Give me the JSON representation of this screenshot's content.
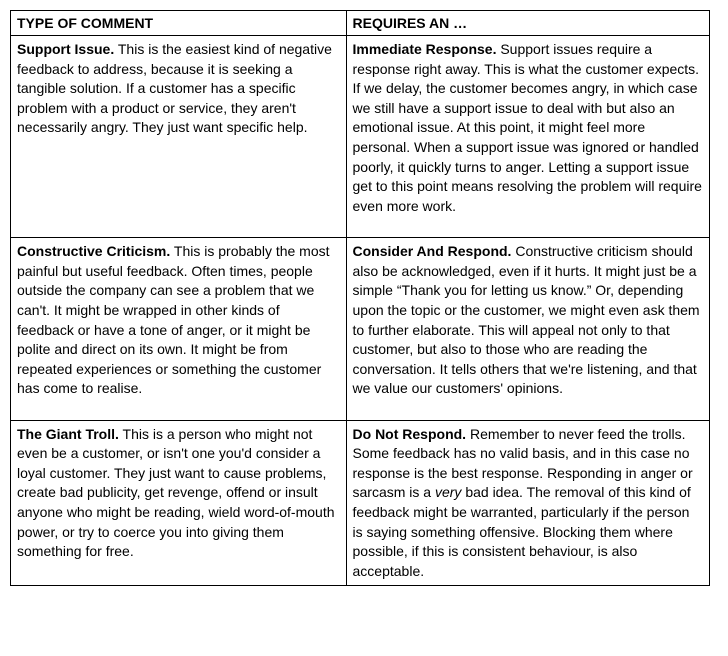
{
  "table": {
    "headers": {
      "col1": "TYPE OF COMMENT",
      "col2": "REQUIRES AN …"
    },
    "rows": [
      {
        "left_title": "Support Issue.",
        "left_body": " This is the easiest kind of negative feedback to address, because it is seeking a tangible solution. If a customer has a specific problem with a product or service, they aren't necessarily angry. They just want specific help.",
        "right_title": "Immediate Response.",
        "right_body": " Support issues require a response right away. This is what the customer expects. If we delay, the customer becomes angry, in which case we still have a support issue to deal with but also an emotional issue. At this point, it might feel more personal. When a support issue was ignored or handled poorly, it quickly turns to anger. Letting a support issue get to this point means resolving the problem will require even more work."
      },
      {
        "left_title": "Constructive Criticism.",
        "left_body": " This is probably the most painful but useful feedback. Often times, people outside the company can see a problem that we can't. It might be wrapped in other kinds of feedback or have a tone of anger, or it might be polite and direct on its own. It might be from repeated experiences or something the customer has come to realise.",
        "right_title": "Consider And Respond.",
        "right_body": " Constructive criticism should also be acknowledged, even if it hurts. It might just be a simple “Thank you for letting us know.” Or, depending upon the topic or the customer, we might even ask them to further elaborate. This will appeal not only to that customer, but also to those who are reading the conversation. It tells others that we're listening, and that we value our customers' opinions."
      },
      {
        "left_title": "The Giant Troll.",
        "left_body": " This is a person who might not even be a customer, or isn't one you'd consider a loyal customer. They just want to cause problems, create bad publicity, get revenge, offend or insult anyone who might be reading, wield word-of-mouth power, or try to coerce you into giving them something for free.",
        "right_title": "Do Not Respond.",
        "right_body_pre": " Remember to never feed the trolls. Some feedback has no valid basis, and in this case no response is the best response. Responding in anger or sarcasm is a ",
        "right_body_italic": "very",
        "right_body_post": " bad idea. The removal of this kind of feedback might be warranted, particularly if the person is saying something offensive. Blocking them where possible, if this is consistent behaviour, is also acceptable."
      }
    ]
  },
  "colors": {
    "border": "#000000",
    "background": "#ffffff",
    "text": "#000000"
  },
  "typography": {
    "font_family": "Arial, Helvetica, sans-serif",
    "font_size_pt": 11,
    "line_height": 1.4
  }
}
